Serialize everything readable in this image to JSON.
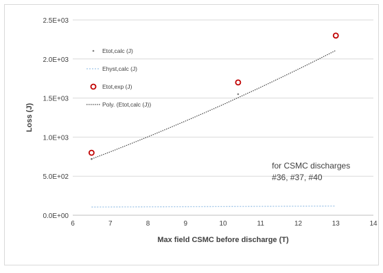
{
  "chart_data": {
    "type": "scatter",
    "title": "",
    "xlabel": "Max field CSMC before discharge (T)",
    "ylabel": "Loss (J)",
    "xlim": [
      6,
      14
    ],
    "ylim": [
      0,
      2500
    ],
    "x_ticks": [
      "6",
      "7",
      "8",
      "9",
      "10",
      "11",
      "12",
      "13",
      "14"
    ],
    "y_ticks": [
      "0.0E+00",
      "5.0E+02",
      "1.0E+03",
      "1.5E+03",
      "2.0E+03",
      "2.5E+03"
    ],
    "grid": "horizontal",
    "legend_position": "left",
    "series": [
      {
        "name": "Etot,calc (J)",
        "marker": "small-dot",
        "color": "#7f7f7f",
        "x": [
          6.5,
          10.4,
          13.0
        ],
        "y": [
          720,
          1550,
          2300
        ]
      },
      {
        "name": "Ehyst,calc (J)",
        "style": "dotted-line",
        "color": "#9dc3e6",
        "x": [
          6.5,
          10.4,
          13.0
        ],
        "y": [
          105,
          112,
          118
        ]
      },
      {
        "name": "Etot,exp (J)",
        "marker": "open-circle",
        "color": "#c00000",
        "x": [
          6.5,
          10.4,
          13.0
        ],
        "y": [
          800,
          1700,
          2300
        ]
      },
      {
        "name": "Poly. (Etot,calc (J))",
        "style": "dotted-trendline",
        "color": "#404040",
        "x": [
          6.5,
          7,
          7.5,
          8,
          8.5,
          9,
          9.5,
          10,
          10.5,
          11,
          11.5,
          12,
          12.5,
          13
        ],
        "y": [
          720,
          812,
          907,
          1004,
          1104,
          1206,
          1310,
          1417,
          1527,
          1638,
          1753,
          1869,
          1988,
          2110
        ]
      }
    ],
    "annotation": {
      "line1": "for CSMC discharges",
      "line2": "#36, #37, #40",
      "x": 11.3,
      "y": 600
    }
  }
}
